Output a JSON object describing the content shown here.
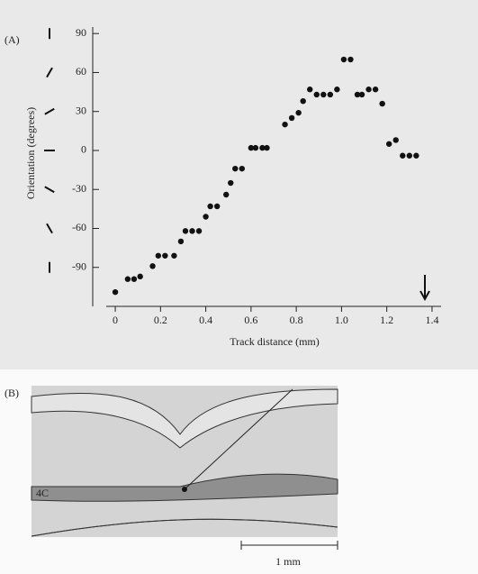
{
  "chart_data": {
    "type": "scatter",
    "panel_label": "(A)",
    "x_label": "Track distance (mm)",
    "y_label": "Orientation (degrees)",
    "color": "#111111",
    "x": [
      0,
      0.055,
      0.083,
      0.11,
      0.165,
      0.19,
      0.22,
      0.26,
      0.29,
      0.31,
      0.34,
      0.37,
      0.4,
      0.42,
      0.45,
      0.49,
      0.51,
      0.53,
      0.56,
      0.6,
      0.62,
      0.65,
      0.67,
      0.75,
      0.78,
      0.81,
      0.83,
      0.86,
      0.89,
      0.92,
      0.95,
      0.98,
      1.01,
      1.04,
      1.07,
      1.09,
      1.12,
      1.15,
      1.18,
      1.21,
      1.24,
      1.27,
      1.3,
      1.33
    ],
    "y": [
      -109,
      -99,
      -99,
      -97,
      -89,
      -81,
      -81,
      -81,
      -70,
      -62,
      -62,
      -62,
      -51,
      -43,
      -43,
      -34,
      -25,
      -14,
      -14,
      2,
      2,
      2,
      2,
      20,
      25,
      29,
      38,
      47,
      43,
      43,
      43,
      47,
      70,
      70,
      43,
      43,
      47,
      47,
      36,
      5,
      8,
      -4,
      -4,
      -4
    ],
    "xlim": [
      -0.04,
      1.44
    ],
    "ylim": [
      -120,
      95
    ],
    "xticks": [
      0,
      0.2,
      0.4,
      0.6,
      0.8,
      {
        "value": 1,
        "label": "1.0"
      },
      1.2,
      1.4
    ],
    "yticks": [
      -90,
      -60,
      -30,
      0,
      30,
      60,
      90
    ]
  },
  "diagram": {
    "panel_label": "(B)",
    "layer_label": "4C",
    "scale_label": "1 mm"
  }
}
